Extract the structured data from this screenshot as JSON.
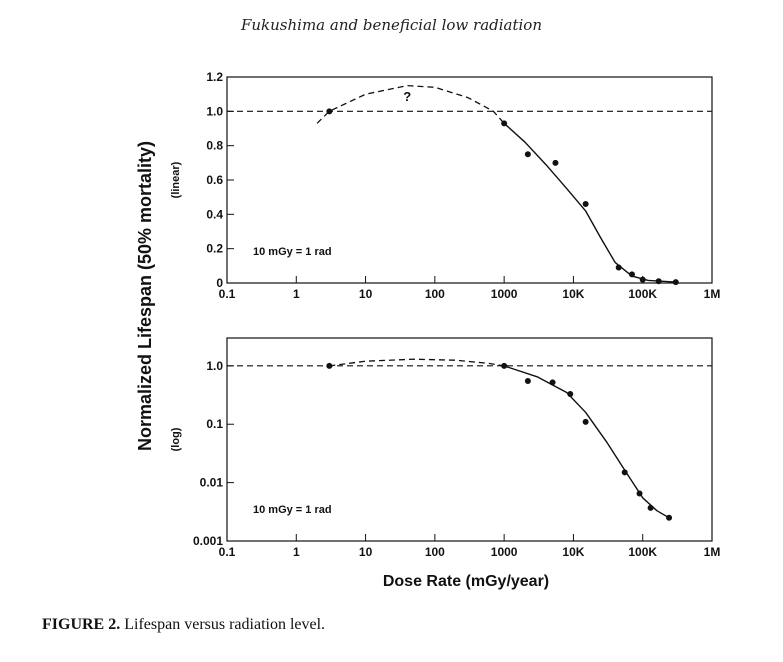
{
  "header": "Fukushima and beneficial low radiation",
  "caption": {
    "label": "FIGURE 2.",
    "text": " Lifespan versus radiation level."
  },
  "shared_y_label": "Normalized Lifespan (50% mortality)",
  "shared_x_label": "Dose Rate (mGy/year)",
  "chart_data": [
    {
      "type": "scatter",
      "title": "",
      "scale_label": "(linear)",
      "annotation": "10 mGy = 1 rad",
      "question_mark": "?",
      "xlabel": "Dose Rate (mGy/year)",
      "ylabel": "Normalized Lifespan (50% mortality)",
      "x_scale": "log",
      "y_scale": "linear",
      "xlim": [
        0.1,
        1000000
      ],
      "ylim": [
        0,
        1.2
      ],
      "x_ticks": [
        0.1,
        1,
        10,
        100,
        1000,
        10000,
        100000,
        1000000
      ],
      "x_tick_labels": [
        "0.1",
        "1",
        "10",
        "100",
        "1000",
        "10K",
        "100K",
        "1M"
      ],
      "y_ticks": [
        0,
        0.2,
        0.4,
        0.6,
        0.8,
        1.0,
        1.2
      ],
      "y_tick_labels": [
        "0",
        "0.2",
        "0.4",
        "0.6",
        "0.8",
        "1.0",
        "1.2"
      ],
      "reference_line": 1.0,
      "points": [
        {
          "x": 3,
          "y": 1.0
        },
        {
          "x": 1000,
          "y": 0.93
        },
        {
          "x": 2200,
          "y": 0.75
        },
        {
          "x": 5500,
          "y": 0.7
        },
        {
          "x": 15000,
          "y": 0.46
        },
        {
          "x": 45000,
          "y": 0.09
        },
        {
          "x": 70000,
          "y": 0.05
        },
        {
          "x": 100000,
          "y": 0.02
        },
        {
          "x": 170000,
          "y": 0.01
        },
        {
          "x": 300000,
          "y": 0.005
        }
      ],
      "fit_curve": [
        [
          1000,
          0.93
        ],
        [
          2000,
          0.82
        ],
        [
          4000,
          0.69
        ],
        [
          8000,
          0.55
        ],
        [
          15000,
          0.42
        ],
        [
          25000,
          0.26
        ],
        [
          40000,
          0.12
        ],
        [
          70000,
          0.04
        ],
        [
          120000,
          0.015
        ],
        [
          300000,
          0.005
        ]
      ],
      "hypothetical_curve": [
        [
          2,
          0.93
        ],
        [
          3,
          1.0
        ],
        [
          10,
          1.1
        ],
        [
          40,
          1.15
        ],
        [
          100,
          1.14
        ],
        [
          300,
          1.08
        ],
        [
          700,
          1.0
        ],
        [
          1000,
          0.93
        ]
      ]
    },
    {
      "type": "scatter",
      "title": "",
      "scale_label": "(log)",
      "annotation": "10 mGy = 1 rad",
      "xlabel": "Dose Rate (mGy/year)",
      "ylabel": "Normalized Lifespan (50% mortality)",
      "x_scale": "log",
      "y_scale": "log",
      "xlim": [
        0.1,
        1000000
      ],
      "ylim": [
        0.001,
        3
      ],
      "x_ticks": [
        0.1,
        1,
        10,
        100,
        1000,
        10000,
        100000,
        1000000
      ],
      "x_tick_labels": [
        "0.1",
        "1",
        "10",
        "100",
        "1000",
        "10K",
        "100K",
        "1M"
      ],
      "y_ticks": [
        0.001,
        0.01,
        0.1,
        1.0
      ],
      "y_tick_labels": [
        "0.001",
        "0.01",
        "0.1",
        "1.0"
      ],
      "reference_line": 1.0,
      "points": [
        {
          "x": 3,
          "y": 1.0
        },
        {
          "x": 1000,
          "y": 1.0
        },
        {
          "x": 2200,
          "y": 0.55
        },
        {
          "x": 5000,
          "y": 0.52
        },
        {
          "x": 9000,
          "y": 0.33
        },
        {
          "x": 15000,
          "y": 0.11
        },
        {
          "x": 55000,
          "y": 0.015
        },
        {
          "x": 90000,
          "y": 0.0065
        },
        {
          "x": 130000,
          "y": 0.0037
        },
        {
          "x": 240000,
          "y": 0.0025
        }
      ],
      "fit_curve": [
        [
          1000,
          1.0
        ],
        [
          3000,
          0.65
        ],
        [
          8000,
          0.35
        ],
        [
          15000,
          0.16
        ],
        [
          30000,
          0.05
        ],
        [
          60000,
          0.014
        ],
        [
          100000,
          0.0055
        ],
        [
          160000,
          0.0033
        ],
        [
          240000,
          0.0025
        ]
      ],
      "hypothetical_curve": [
        [
          3,
          1.0
        ],
        [
          10,
          1.2
        ],
        [
          50,
          1.3
        ],
        [
          200,
          1.25
        ],
        [
          600,
          1.1
        ],
        [
          1000,
          1.0
        ]
      ]
    }
  ]
}
